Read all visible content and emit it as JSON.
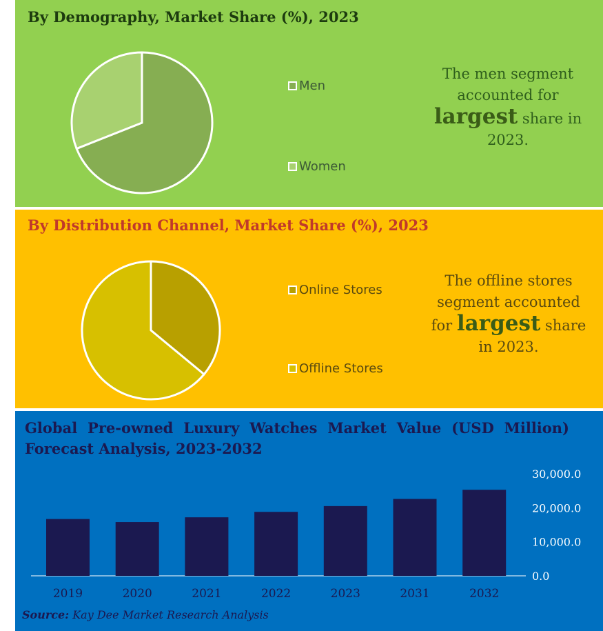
{
  "demography": {
    "title": "By Demography, Market Share (%), 2023",
    "legend": [
      "Men",
      "Women"
    ],
    "note_before": "The men segment accounted for",
    "note_emph": "largest",
    "note_after": "share in 2023.",
    "colors": {
      "men": "#86ae52",
      "women": "#a8d170"
    }
  },
  "distribution": {
    "title": "By Distribution Channel, Market Share (%), 2023",
    "legend": [
      "Online Stores",
      "Offline Stores"
    ],
    "note_before": "The offline stores segment accounted for",
    "note_emph": "largest",
    "note_after": "share in 2023.",
    "colors": {
      "online": "#b8a000",
      "offline": "#d7c000"
    }
  },
  "forecast": {
    "title": "Global Pre-owned Luxury Watches Market Value (USD Million) Forecast Analysis, 2023-2032",
    "source_label": "Source:",
    "source_text": "Kay Dee Market Research Analysis",
    "bar_color": "#1b1950"
  },
  "chart_data": [
    {
      "type": "pie",
      "title": "By Demography, Market Share (%), 2023",
      "categories": [
        "Men",
        "Women"
      ],
      "values": [
        69,
        31
      ]
    },
    {
      "type": "pie",
      "title": "By Distribution Channel, Market Share (%), 2023",
      "categories": [
        "Online Stores",
        "Offline Stores"
      ],
      "values": [
        36,
        64
      ]
    },
    {
      "type": "bar",
      "title": "Global Pre-owned Luxury Watches Market Value (USD Million) Forecast Analysis, 2023-2032",
      "categories": [
        "2019",
        "2020",
        "2021",
        "2022",
        "2023",
        "2031",
        "2032"
      ],
      "values": [
        16700,
        15800,
        17200,
        18800,
        20500,
        22600,
        25300
      ],
      "ylim": [
        0,
        30000
      ],
      "yticks": [
        "0.0",
        "10,000.0",
        "20,000.0",
        "30,000.0"
      ],
      "ytick_values": [
        0,
        10000,
        20000,
        30000
      ],
      "xlabel": "",
      "ylabel": "",
      "grid": false
    }
  ]
}
